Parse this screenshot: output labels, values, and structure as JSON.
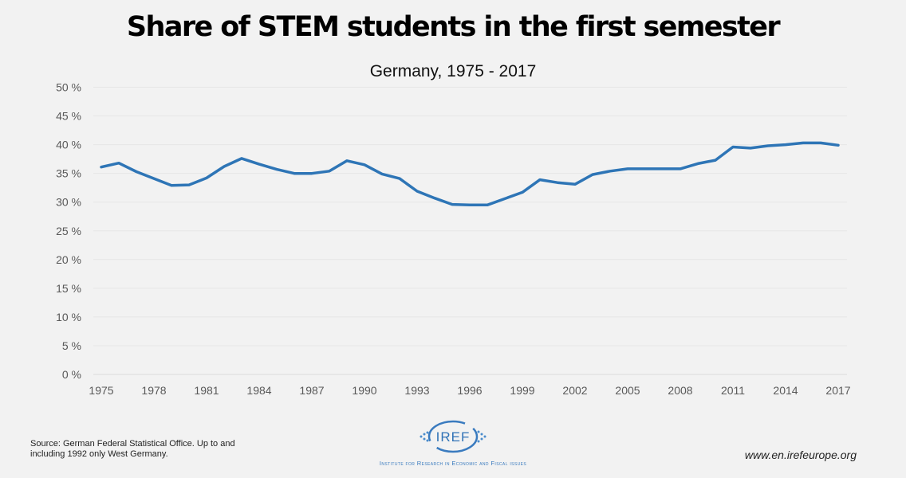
{
  "chart_data": {
    "type": "line",
    "title": "Share of STEM students in the first semester",
    "subtitle": "Germany, 1975 - 2017",
    "xlabel": "",
    "ylabel": "",
    "ylim": [
      0,
      50
    ],
    "yticks": [
      0,
      5,
      10,
      15,
      20,
      25,
      30,
      35,
      40,
      45,
      50
    ],
    "ytick_suffix": " %",
    "xlim": [
      1975,
      2017
    ],
    "xticks": [
      1975,
      1978,
      1981,
      1984,
      1987,
      1990,
      1993,
      1996,
      1999,
      2002,
      2005,
      2008,
      2011,
      2014,
      2017
    ],
    "grid": true,
    "legend": "none",
    "x": [
      1975,
      1976,
      1977,
      1978,
      1979,
      1980,
      1981,
      1982,
      1983,
      1984,
      1985,
      1986,
      1987,
      1988,
      1989,
      1990,
      1991,
      1992,
      1993,
      1994,
      1995,
      1996,
      1997,
      1998,
      1999,
      2000,
      2001,
      2002,
      2003,
      2004,
      2005,
      2006,
      2007,
      2008,
      2009,
      2010,
      2011,
      2012,
      2013,
      2014,
      2015,
      2016,
      2017
    ],
    "series": [
      {
        "name": "Share of STEM students",
        "color": "#2e75b6",
        "values": [
          36.1,
          36.8,
          35.3,
          34.1,
          32.9,
          33.0,
          34.2,
          36.2,
          37.6,
          36.6,
          35.7,
          35.0,
          35.0,
          35.4,
          37.2,
          36.5,
          34.9,
          34.1,
          31.9,
          30.7,
          29.6,
          29.5,
          29.5,
          30.6,
          31.7,
          33.9,
          33.4,
          33.1,
          34.8,
          35.4,
          35.8,
          35.8,
          35.8,
          35.8,
          36.7,
          37.3,
          39.6,
          39.4,
          39.8,
          40.0,
          40.3,
          40.3,
          39.9
        ]
      }
    ]
  },
  "footer": {
    "source": "Source: German Federal Statistical Office. Up to and including 1992 only West Germany.",
    "logo_text": "IREF",
    "logo_caption": "Institute for Research in Economic and Fiscal issues",
    "url": "www.en.irefeurope.org"
  }
}
